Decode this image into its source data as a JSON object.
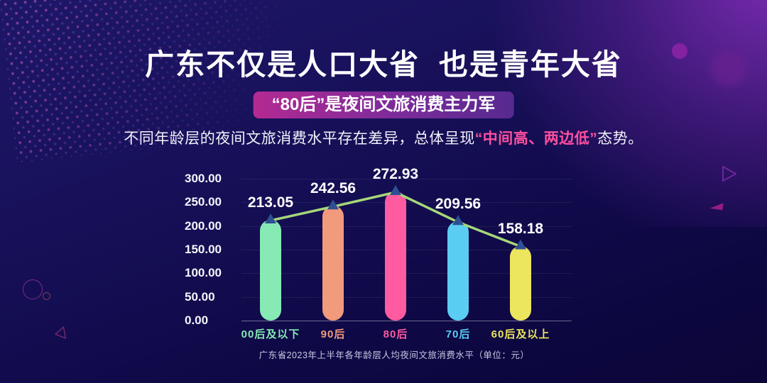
{
  "header": {
    "title": "广东不仅是人口大省  也是青年大省",
    "badge_label": "“80后”是夜间文旅消费主力军",
    "subtitle": {
      "prefix": "不同年龄层的夜间文旅消费水平存在差异，总体呈现",
      "highlight": "“中间高、两边低”",
      "suffix": "态势。"
    }
  },
  "chart_data": {
    "type": "bar",
    "title": "广东省2023年上半年各年龄层人均夜间文旅消费水平（单位：元）",
    "unit": "元",
    "categories": [
      "00后及以下",
      "90后",
      "80后",
      "70后",
      "60后及以上"
    ],
    "values": [
      213.05,
      242.56,
      272.93,
      209.56,
      158.18
    ],
    "value_labels": [
      "213.05",
      "242.56",
      "272.93",
      "209.56",
      "158.18"
    ],
    "bar_colors": [
      "#87e9b4",
      "#f29a7c",
      "#ff5ba1",
      "#5bcdf2",
      "#ece55e"
    ],
    "y_ticks": [
      "300.00",
      "250.00",
      "200.00",
      "150.00",
      "100.00",
      "50.00",
      "0.00"
    ],
    "ylim": [
      0,
      300
    ],
    "grid": "horizontal-faint",
    "legend": "none",
    "overlay_line": {
      "type": "line",
      "color": "#a6d878",
      "marker": "triangle-up",
      "marker_color": "#2e4f93",
      "values": [
        213.05,
        242.56,
        272.93,
        209.56,
        158.18
      ]
    }
  },
  "colors": {
    "accent_pink": "#ff4fa0",
    "badge_gradient_left": "#b32a92",
    "badge_gradient_right": "#562a90",
    "background_top": "#1e1768",
    "background_bottom": "#0b0538",
    "title_text": "#ffffff"
  }
}
